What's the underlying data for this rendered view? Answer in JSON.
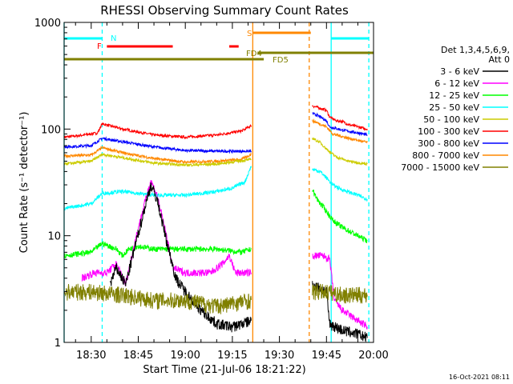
{
  "chart_data": {
    "type": "line",
    "title": "RHESSI Observing Summary Count Rates",
    "xlabel": "Start Time (21-Jul-06 18:21:22)",
    "ylabel": "Count Rate (s⁻¹ detector⁻¹)",
    "ylog": true,
    "ylim": [
      1,
      1000
    ],
    "xlim": [
      "18:21:22",
      "20:00:00"
    ],
    "x_ticks": [
      "18:30",
      "18:45",
      "19:00",
      "19:15",
      "19:30",
      "19:45",
      "20:00"
    ],
    "y_ticks": [
      "1",
      "10",
      "100",
      "1000"
    ],
    "timestamp": "16-Oct-2021 08:11",
    "legend": {
      "placement": "right",
      "header": [
        "Det 1,3,4,5,6,9,",
        "Att 0"
      ],
      "entries": [
        {
          "label": "3 - 6 keV",
          "color": "#000000"
        },
        {
          "label": "6 - 12 keV",
          "color": "#ff00ff"
        },
        {
          "label": "12 - 25 keV",
          "color": "#00ff00"
        },
        {
          "label": "25 - 50 keV",
          "color": "#00ffff"
        },
        {
          "label": "50 - 100 keV",
          "color": "#cccc00"
        },
        {
          "label": "100 - 300 keV",
          "color": "#ff0000"
        },
        {
          "label": "300 - 800 keV",
          "color": "#0000ff"
        },
        {
          "label": "800 - 7000 keV",
          "color": "#ff8800"
        },
        {
          "label": "7000 - 15000 keV",
          "color": "#808000"
        }
      ]
    },
    "flag_labels": {
      "N": "N",
      "F": "F",
      "S": "S",
      "FD4": "FD4",
      "FD5": "FD5"
    },
    "flags": [
      {
        "label": "N",
        "color": "#00ffff",
        "segments": [
          [
            "18:21:22",
            "18:33:30"
          ],
          [
            "19:46:30",
            "19:58:30"
          ]
        ],
        "level": 1
      },
      {
        "label": "F",
        "color": "#ff0000",
        "segments": [
          [
            "18:35:00",
            "18:56:00"
          ],
          [
            "19:14:00",
            "19:17:00"
          ]
        ],
        "level": 2
      },
      {
        "label": "S",
        "color": "#ff8800",
        "segments": [
          [
            "19:21:30",
            "19:40:00"
          ]
        ],
        "level": 0
      },
      {
        "label": "FD4",
        "color": "#808000",
        "segments": [
          [
            "19:23:00",
            "20:00:00"
          ]
        ],
        "level": 3
      },
      {
        "label": "FD5",
        "color": "#808000",
        "segments": [
          [
            "18:21:22",
            "19:25:00"
          ]
        ],
        "level": 4
      }
    ],
    "vlines": [
      {
        "time": "18:21:22",
        "color": "#00ffff",
        "style": "solid"
      },
      {
        "time": "18:33:30",
        "color": "#00ffff",
        "style": "dashed"
      },
      {
        "time": "19:21:30",
        "color": "#ff8800",
        "style": "solid"
      },
      {
        "time": "19:39:30",
        "color": "#ff8800",
        "style": "dashed"
      },
      {
        "time": "19:46:30",
        "color": "#00ffff",
        "style": "solid"
      },
      {
        "time": "19:58:30",
        "color": "#00ffff",
        "style": "dashed"
      }
    ],
    "series": [
      {
        "name": "100 - 300 keV",
        "color": "#ff0000",
        "noise": 0.03,
        "segments": [
          [
            [
              "18:21:22",
              84
            ],
            [
              "18:25:00",
              86
            ],
            [
              "18:30:00",
              90
            ],
            [
              "18:32:00",
              92
            ],
            [
              "18:33:30",
              112
            ],
            [
              "18:40:00",
              100
            ],
            [
              "18:50:00",
              88
            ],
            [
              "19:00:00",
              84
            ],
            [
              "19:10:00",
              88
            ],
            [
              "19:18:00",
              96
            ],
            [
              "19:21:00",
              108
            ]
          ],
          [
            [
              "19:40:30",
              165
            ],
            [
              "19:42:00",
              160
            ],
            [
              "19:45:00",
              150
            ],
            [
              "19:46:00",
              130
            ],
            [
              "19:48:00",
              120
            ],
            [
              "19:50:00",
              118
            ],
            [
              "19:52:00",
              110
            ],
            [
              "19:55:00",
              105
            ],
            [
              "19:58:00",
              100
            ]
          ]
        ]
      },
      {
        "name": "300 - 800 keV",
        "color": "#0000ff",
        "noise": 0.03,
        "segments": [
          [
            [
              "18:21:22",
              68
            ],
            [
              "18:30:00",
              70
            ],
            [
              "18:33:30",
              82
            ],
            [
              "18:40:00",
              76
            ],
            [
              "18:50:00",
              68
            ],
            [
              "19:00:00",
              63
            ],
            [
              "19:10:00",
              62
            ],
            [
              "19:21:00",
              62
            ]
          ],
          [
            [
              "19:40:30",
              140
            ],
            [
              "19:42:00",
              135
            ],
            [
              "19:45:00",
              120
            ],
            [
              "19:46:00",
              105
            ],
            [
              "19:50:00",
              98
            ],
            [
              "19:55:00",
              92
            ],
            [
              "19:58:00",
              88
            ]
          ]
        ]
      },
      {
        "name": "800 - 7000 keV",
        "color": "#ff8800",
        "noise": 0.03,
        "segments": [
          [
            [
              "18:21:22",
              56
            ],
            [
              "18:30:00",
              57
            ],
            [
              "18:33:30",
              67
            ],
            [
              "18:40:00",
              60
            ],
            [
              "18:50:00",
              53
            ],
            [
              "19:00:00",
              49
            ],
            [
              "19:10:00",
              50
            ],
            [
              "19:18:00",
              52
            ],
            [
              "19:21:00",
              58
            ]
          ],
          [
            [
              "19:40:30",
              120
            ],
            [
              "19:42:00",
              115
            ],
            [
              "19:45:00",
              105
            ],
            [
              "19:47:00",
              90
            ],
            [
              "19:52:00",
              82
            ],
            [
              "19:58:00",
              75
            ]
          ]
        ]
      },
      {
        "name": "50 - 100 keV",
        "color": "#cccc00",
        "noise": 0.03,
        "segments": [
          [
            [
              "18:21:22",
              47
            ],
            [
              "18:30:00",
              50
            ],
            [
              "18:33:30",
              58
            ],
            [
              "18:40:00",
              54
            ],
            [
              "18:50:00",
              48
            ],
            [
              "19:00:00",
              46
            ],
            [
              "19:10:00",
              47
            ],
            [
              "19:21:00",
              52
            ]
          ],
          [
            [
              "19:40:30",
              82
            ],
            [
              "19:43:00",
              75
            ],
            [
              "19:45:00",
              65
            ],
            [
              "19:48:00",
              55
            ],
            [
              "19:52:00",
              50
            ],
            [
              "19:58:00",
              47
            ]
          ]
        ]
      },
      {
        "name": "25 - 50 keV",
        "color": "#00ffff",
        "noise": 0.04,
        "segments": [
          [
            [
              "18:21:22",
              18
            ],
            [
              "18:30:00",
              20
            ],
            [
              "18:33:30",
              25
            ],
            [
              "18:40:00",
              26
            ],
            [
              "18:50:00",
              24
            ],
            [
              "19:00:00",
              24
            ],
            [
              "19:10:00",
              26
            ],
            [
              "19:15:00",
              28
            ],
            [
              "19:19:00",
              32
            ],
            [
              "19:21:00",
              45
            ]
          ],
          [
            [
              "19:40:30",
              42
            ],
            [
              "19:43:00",
              40
            ],
            [
              "19:45:00",
              35
            ],
            [
              "19:47:00",
              30
            ],
            [
              "19:50:00",
              27
            ],
            [
              "19:55:00",
              24
            ],
            [
              "19:58:00",
              22
            ]
          ]
        ]
      },
      {
        "name": "12 - 25 keV",
        "color": "#00ff00",
        "noise": 0.06,
        "segments": [
          [
            [
              "18:21:22",
              6.5
            ],
            [
              "18:30:00",
              7
            ],
            [
              "18:33:30",
              8.5
            ],
            [
              "18:38:00",
              7.5
            ],
            [
              "18:40:00",
              6.5
            ],
            [
              "18:42:00",
              7.5
            ],
            [
              "18:45:00",
              8
            ],
            [
              "18:50:00",
              7.5
            ],
            [
              "19:00:00",
              7.5
            ],
            [
              "19:10:00",
              7.5
            ],
            [
              "19:18:00",
              7
            ],
            [
              "19:21:00",
              7.5
            ]
          ],
          [
            [
              "19:40:30",
              27
            ],
            [
              "19:42:00",
              22
            ],
            [
              "19:45:00",
              17
            ],
            [
              "19:47:00",
              14
            ],
            [
              "19:50:00",
              12
            ],
            [
              "19:55:00",
              10
            ],
            [
              "19:58:00",
              9
            ]
          ]
        ]
      },
      {
        "name": "6 - 12 keV",
        "color": "#ff00ff",
        "noise": 0.08,
        "segments": [
          [
            [
              "18:27:00",
              4
            ],
            [
              "18:31:00",
              4.5
            ],
            [
              "18:35:00",
              4.5
            ],
            [
              "18:38:00",
              5.5
            ],
            [
              "18:41:00",
              3.5
            ],
            [
              "18:44:00",
              9
            ],
            [
              "18:47:00",
              20
            ],
            [
              "18:49:00",
              33
            ],
            [
              "18:51:00",
              24
            ],
            [
              "18:54:00",
              10
            ],
            [
              "18:56:00",
              5
            ],
            [
              "19:00:00",
              4.5
            ],
            [
              "19:08:00",
              4.5
            ],
            [
              "19:12:00",
              5.5
            ],
            [
              "19:14:00",
              6.5
            ],
            [
              "19:16:00",
              4.5
            ],
            [
              "19:21:00",
              4.5
            ]
          ],
          [
            [
              "19:40:30",
              6.5
            ],
            [
              "19:44:00",
              6.5
            ],
            [
              "19:46:00",
              6
            ],
            [
              "19:47:30",
              2.5
            ],
            [
              "19:50:00",
              2
            ],
            [
              "19:55:00",
              1.6
            ],
            [
              "19:58:00",
              1.4
            ]
          ]
        ]
      },
      {
        "name": "3 - 6 keV",
        "color": "#000000",
        "noise": 0.12,
        "segments": [
          [
            [
              "18:36:00",
              3.5
            ],
            [
              "18:38:00",
              5
            ],
            [
              "18:41:00",
              3.5
            ],
            [
              "18:44:00",
              8
            ],
            [
              "18:47:00",
              18
            ],
            [
              "18:49:00",
              30
            ],
            [
              "18:51:00",
              22
            ],
            [
              "18:54:00",
              9
            ],
            [
              "18:57:00",
              4
            ],
            [
              "19:00:00",
              3
            ],
            [
              "19:05:00",
              2
            ],
            [
              "19:10:00",
              1.5
            ],
            [
              "19:15:00",
              1.4
            ],
            [
              "19:21:00",
              1.6
            ]
          ],
          [
            [
              "19:40:30",
              3.5
            ],
            [
              "19:45:00",
              3
            ],
            [
              "19:46:00",
              1.5
            ],
            [
              "19:50:00",
              1.3
            ],
            [
              "19:55:00",
              1.2
            ],
            [
              "19:58:00",
              1.1
            ]
          ]
        ]
      },
      {
        "name": "7000 - 15000 keV",
        "color": "#808000",
        "noise": 0.18,
        "segments": [
          [
            [
              "18:21:22",
              3
            ],
            [
              "18:30:00",
              3
            ],
            [
              "18:40:00",
              2.8
            ],
            [
              "18:50:00",
              2.5
            ],
            [
              "19:00:00",
              2.5
            ],
            [
              "19:10:00",
              2.2
            ],
            [
              "19:21:00",
              2.5
            ]
          ],
          [
            [
              "19:40:30",
              3
            ],
            [
              "19:45:00",
              3
            ],
            [
              "19:50:00",
              2.8
            ],
            [
              "19:58:00",
              2.8
            ]
          ]
        ]
      }
    ]
  }
}
